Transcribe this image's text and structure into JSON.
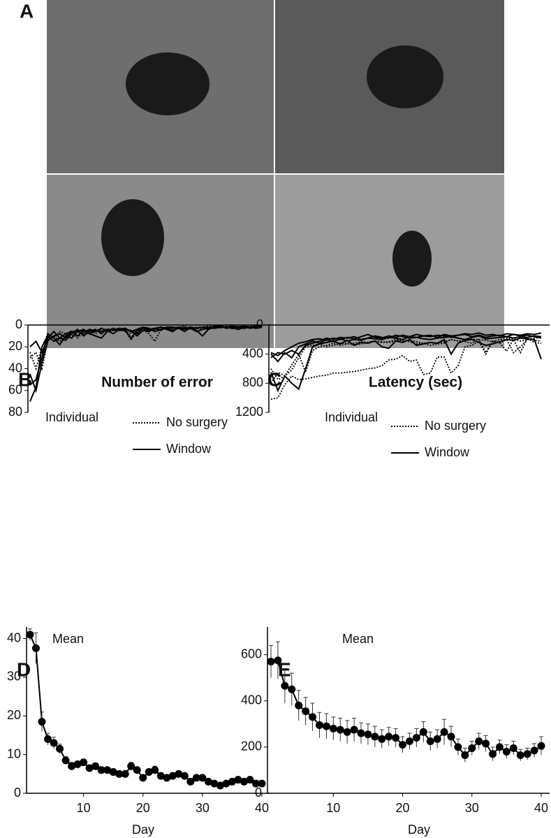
{
  "figure_labels": [
    "A",
    "B",
    "C",
    "D",
    "E"
  ],
  "chart_data": [
    {
      "type": "line",
      "title": "Number of error",
      "annotation": "Individual",
      "legend": "top-right",
      "x": [
        1,
        2,
        3,
        4,
        5,
        6,
        7,
        8,
        9,
        10,
        11,
        12,
        13,
        14,
        15,
        16,
        17,
        18,
        19,
        20,
        21,
        22,
        23,
        24,
        25,
        26,
        27,
        28,
        29,
        30,
        31,
        32,
        33,
        34,
        35,
        36,
        37,
        38,
        39,
        40
      ],
      "xlim": [
        1,
        40
      ],
      "ylim": [
        0,
        80
      ],
      "yticks": [
        0,
        20,
        40,
        60,
        80
      ],
      "series": [
        {
          "name": "No surgery",
          "style": "dotted",
          "color": "#000000",
          "lines": [
            [
              30,
              25,
              40,
              15,
              10,
              15,
              10,
              5,
              12,
              6,
              5,
              8,
              4,
              6,
              3,
              5,
              5,
              14,
              6,
              4,
              8,
              15,
              4,
              3,
              2,
              3,
              2,
              4,
              3,
              4,
              2,
              1,
              2,
              2,
              3,
              4,
              2,
              2,
              2,
              1
            ],
            [
              25,
              40,
              20,
              8,
              12,
              6,
              8,
              10,
              5,
              6,
              4,
              5,
              6,
              4,
              3,
              4,
              6,
              8,
              4,
              2,
              4,
              3,
              2,
              4,
              3,
              2,
              1,
              3,
              2,
              2,
              1,
              2,
              3,
              1,
              2,
              1,
              2,
              1,
              1,
              1
            ]
          ]
        },
        {
          "name": "Window",
          "style": "solid",
          "color": "#000000",
          "lines": [
            [
              70,
              57,
              20,
              10,
              15,
              12,
              8,
              6,
              10,
              5,
              8,
              5,
              6,
              4,
              5,
              4,
              3,
              6,
              8,
              3,
              5,
              4,
              2,
              3,
              5,
              3,
              4,
              3,
              6,
              4,
              3,
              2,
              1,
              2,
              3,
              2,
              1,
              3,
              2,
              2
            ],
            [
              55,
              50,
              30,
              8,
              12,
              18,
              10,
              12,
              6,
              8,
              4,
              6,
              3,
              5,
              8,
              4,
              5,
              12,
              5,
              3,
              4,
              3,
              2,
              4,
              6,
              2,
              3,
              2,
              3,
              2,
              4,
              1,
              1,
              3,
              2,
              4,
              2,
              2,
              1,
              1
            ],
            [
              45,
              60,
              35,
              14,
              10,
              8,
              12,
              6,
              6,
              4,
              8,
              10,
              12,
              6,
              4,
              5,
              4,
              6,
              4,
              2,
              3,
              6,
              4,
              2,
              2,
              3,
              6,
              2,
              5,
              10,
              4,
              2,
              1,
              2,
              1,
              2,
              3,
              2,
              2,
              2
            ],
            [
              20,
              15,
              25,
              12,
              6,
              12,
              14,
              8,
              4,
              10,
              6,
              4,
              8,
              4,
              5,
              3,
              4,
              5,
              10,
              5,
              6,
              3,
              5,
              2,
              3,
              2,
              4,
              2,
              3,
              2,
              2,
              3,
              2,
              2,
              3,
              2,
              1,
              2,
              3,
              2
            ]
          ]
        }
      ]
    },
    {
      "type": "line",
      "title": "Latency (sec)",
      "annotation": "Individual",
      "legend": "top-right",
      "x": [
        1,
        2,
        3,
        4,
        5,
        6,
        7,
        8,
        9,
        10,
        11,
        12,
        13,
        14,
        15,
        16,
        17,
        18,
        19,
        20,
        21,
        22,
        23,
        24,
        25,
        26,
        27,
        28,
        29,
        30,
        31,
        32,
        33,
        34,
        35,
        36,
        37,
        38,
        39,
        40
      ],
      "xlim": [
        1,
        40
      ],
      "ylim": [
        0,
        1200
      ],
      "yticks": [
        0,
        400,
        800,
        1200
      ],
      "series": [
        {
          "name": "No surgery",
          "style": "dotted",
          "color": "#000000",
          "lines": [
            [
              1020,
              1000,
              820,
              700,
              750,
              740,
              720,
              700,
              690,
              660,
              660,
              650,
              640,
              620,
              600,
              590,
              560,
              480,
              470,
              420,
              500,
              480,
              680,
              660,
              440,
              440,
              660,
              560,
              300,
              280,
              220,
              400,
              220,
              240,
              360,
              200,
              380,
              180,
              240,
              250
            ],
            [
              800,
              650,
              700,
              620,
              450,
              300,
              280,
              260,
              300,
              280,
              250,
              250,
              270,
              260,
              240,
              220,
              230,
              240,
              220,
              200,
              230,
              260,
              250,
              280,
              260,
              250,
              200,
              220,
              230,
              250,
              200,
              380,
              220,
              250,
              200,
              380,
              300,
              200,
              210,
              220
            ],
            [
              600,
              750,
              700,
              550,
              400,
              650,
              350,
              300,
              280,
              250,
              280,
              260,
              250,
              230,
              240,
              220,
              240,
              230,
              200,
              220,
              210,
              230,
              250,
              240,
              260,
              230,
              200,
              220,
              210,
              190,
              200,
              210,
              230,
              200,
              180,
              190,
              220,
              200,
              180,
              170
            ]
          ]
        },
        {
          "name": "Window",
          "style": "solid",
          "color": "#000000",
          "lines": [
            [
              650,
              900,
              700,
              800,
              880,
              600,
              300,
              260,
              240,
              220,
              260,
              210,
              280,
              240,
              250,
              220,
              300,
              320,
              220,
              240,
              200,
              280,
              260,
              240,
              250,
              200,
              400,
              250,
              210,
              200,
              240,
              280,
              260,
              230,
              200,
              210,
              180,
              190,
              200,
              470
            ],
            [
              400,
              500,
              380,
              450,
              300,
              260,
              220,
              250,
              200,
              230,
              190,
              220,
              200,
              210,
              180,
              190,
              200,
              170,
              180,
              200,
              160,
              170,
              190,
              200,
              180,
              170,
              160,
              180,
              200,
              170,
              150,
              190,
              180,
              170,
              160,
              180,
              160,
              170,
              150,
              160
            ],
            [
              380,
              420,
              350,
              300,
              250,
              230,
              200,
              190,
              210,
              180,
              200,
              170,
              190,
              160,
              130,
              170,
              180,
              150,
              170,
              140,
              160,
              130,
              150,
              140,
              170,
              130,
              150,
              140,
              120,
              130,
              110,
              140,
              130,
              150,
              120,
              130,
              140,
              120,
              130,
              110
            ],
            [
              450,
              380,
              400,
              350,
              400,
              280,
              250,
              220,
              180,
              200,
              170,
              180,
              160,
              200,
              180,
              150,
              170,
              180,
              140,
              160,
              180,
              170,
              150,
              160,
              140,
              150,
              170,
              140,
              130,
              160,
              140,
              170,
              150,
              140,
              160,
              130,
              150,
              140,
              160,
              180
            ]
          ]
        }
      ]
    },
    {
      "type": "errorline",
      "annotation": "Mean",
      "x_label": "Day",
      "x": [
        1,
        2,
        3,
        4,
        5,
        6,
        7,
        8,
        9,
        10,
        11,
        12,
        13,
        14,
        15,
        16,
        17,
        18,
        19,
        20,
        21,
        22,
        23,
        24,
        25,
        26,
        27,
        28,
        29,
        30,
        31,
        32,
        33,
        34,
        35,
        36,
        37,
        38,
        39,
        40
      ],
      "xlim": [
        1,
        40
      ],
      "xticks": [
        10,
        20,
        30,
        40
      ],
      "ylim": [
        0,
        43
      ],
      "yticks": [
        0,
        10,
        20,
        30,
        40
      ],
      "color": "#000000",
      "values": [
        41,
        37.5,
        18.5,
        14,
        13,
        11.5,
        8.5,
        7,
        7.5,
        8,
        6.5,
        7,
        6,
        6,
        5.5,
        5,
        5,
        7,
        6,
        4,
        5.5,
        6,
        4.5,
        4,
        4.5,
        5,
        4.5,
        3,
        4,
        4,
        3,
        2.5,
        2,
        2.5,
        3,
        3.5,
        3,
        3.5,
        2.5,
        2.5
      ],
      "errors": [
        1.5,
        4,
        2.5,
        1.5,
        1.5,
        1.2,
        1,
        1,
        0.8,
        0.8,
        0.8,
        0.8,
        0.7,
        0.7,
        0.7,
        0.7,
        0.7,
        1,
        0.8,
        0.7,
        0.8,
        1,
        0.7,
        0.6,
        0.6,
        0.7,
        0.6,
        0.5,
        0.6,
        0.6,
        0.5,
        0.5,
        0.4,
        0.5,
        0.5,
        0.6,
        0.5,
        0.6,
        0.5,
        0.5
      ]
    },
    {
      "type": "errorline",
      "annotation": "Mean",
      "x_label": "Day",
      "x": [
        1,
        2,
        3,
        4,
        5,
        6,
        7,
        8,
        9,
        10,
        11,
        12,
        13,
        14,
        15,
        16,
        17,
        18,
        19,
        20,
        21,
        22,
        23,
        24,
        25,
        26,
        27,
        28,
        29,
        30,
        31,
        32,
        33,
        34,
        35,
        36,
        37,
        38,
        39,
        40
      ],
      "xlim": [
        1,
        40
      ],
      "xticks": [
        10,
        20,
        30,
        40
      ],
      "ylim": [
        0,
        720
      ],
      "yticks": [
        0,
        200,
        400,
        600
      ],
      "color": "#000000",
      "values": [
        570,
        575,
        465,
        450,
        380,
        355,
        330,
        295,
        290,
        280,
        275,
        265,
        275,
        260,
        255,
        245,
        235,
        245,
        240,
        210,
        225,
        240,
        265,
        225,
        235,
        265,
        245,
        200,
        165,
        195,
        225,
        215,
        170,
        200,
        180,
        195,
        165,
        170,
        185,
        205
      ],
      "errors": [
        70,
        80,
        75,
        70,
        65,
        60,
        60,
        55,
        55,
        50,
        50,
        50,
        50,
        45,
        45,
        45,
        40,
        40,
        40,
        35,
        35,
        40,
        45,
        40,
        40,
        55,
        45,
        35,
        30,
        30,
        35,
        35,
        30,
        30,
        30,
        30,
        25,
        25,
        30,
        40
      ]
    }
  ]
}
